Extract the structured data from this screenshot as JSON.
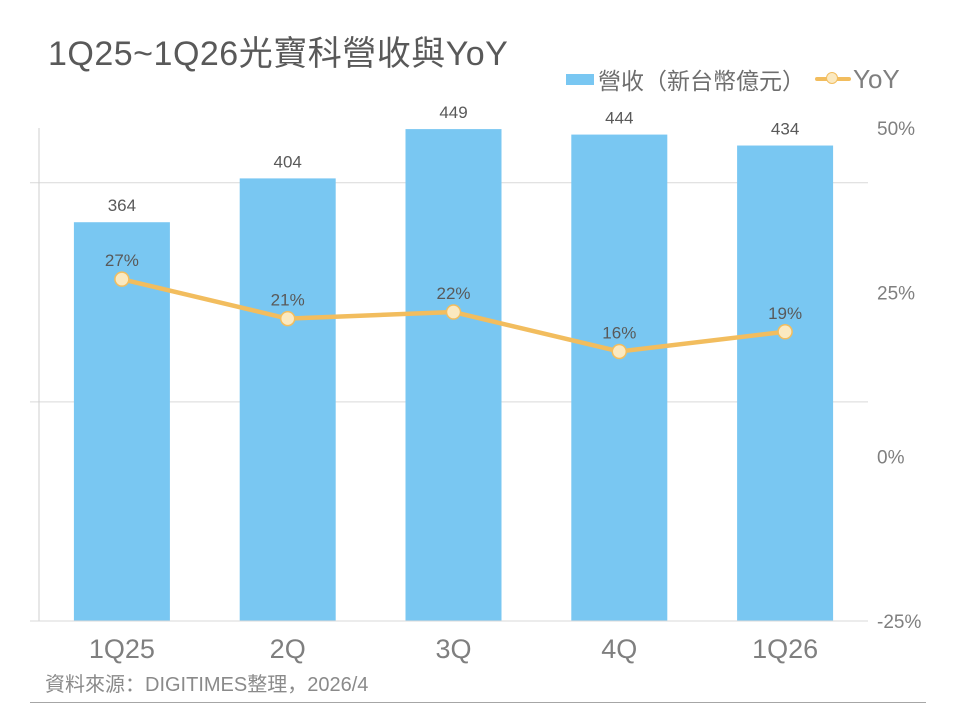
{
  "title": "1Q25~1Q26光寶科營收與YoY",
  "legend": {
    "revenue_label": "營收（新台幣億元）",
    "yoy_label": "YoY"
  },
  "source": "資料來源：DIGITIMES整理，2026/4",
  "colors": {
    "bar": "#79C7F2",
    "line": "#F2BD5E",
    "marker_fill": "#FBE9C0",
    "grid": "#D9D9D9",
    "axis": "#CFCFCF",
    "value_label": "#595959",
    "muted_label": "#7F7F7F"
  },
  "chart_data": {
    "type": "bar",
    "subtype": "combo-bar-line",
    "title": "1Q25~1Q26光寶科營收與YoY",
    "categories": [
      "1Q25",
      "2Q",
      "3Q",
      "4Q",
      "1Q26"
    ],
    "series": [
      {
        "name": "營收（新台幣億元）",
        "type": "bar",
        "axis": "left",
        "values": [
          364,
          404,
          449,
          444,
          434
        ],
        "labels": [
          "364",
          "404",
          "449",
          "444",
          "434"
        ]
      },
      {
        "name": "YoY",
        "type": "line",
        "axis": "right",
        "values": [
          27,
          21,
          22,
          16,
          19
        ],
        "labels": [
          "27%",
          "21%",
          "22%",
          "16%",
          "19%"
        ]
      }
    ],
    "left_axis": {
      "min": 0,
      "max": 450,
      "gridlines": [
        200,
        400
      ],
      "labels_visible": false
    },
    "right_axis": {
      "min": -25,
      "max": 50,
      "ticks": [
        "50%",
        "25%",
        "0%",
        "-25%"
      ],
      "tick_values": [
        50,
        25,
        0,
        -25
      ]
    },
    "grid": true,
    "legend_position": "top-right",
    "source_note": "資料來源：DIGITIMES整理，2026/4"
  }
}
